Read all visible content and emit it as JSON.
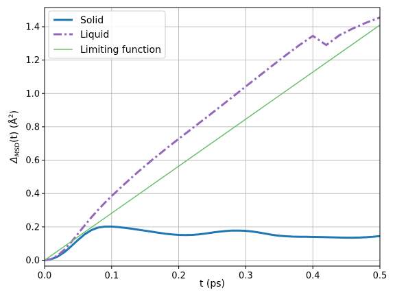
{
  "chart_data": {
    "type": "line",
    "title": "",
    "xlabel": "t (ps)",
    "ylabel": "Δ",
    "ylabel_sub": "MSD",
    "ylabel_tail": "(t) (Å",
    "ylabel_sup": "2",
    "ylabel_close": ")",
    "xlim": [
      0.0,
      0.5
    ],
    "ylim": [
      -0.035,
      1.515
    ],
    "grid": true,
    "legend_position": "top-left",
    "x_ticks": [
      {
        "value": 0.0,
        "label": "0.0"
      },
      {
        "value": 0.1,
        "label": "0.1"
      },
      {
        "value": 0.2,
        "label": "0.2"
      },
      {
        "value": 0.3,
        "label": "0.3"
      },
      {
        "value": 0.4,
        "label": "0.4"
      },
      {
        "value": 0.5,
        "label": "0.5"
      }
    ],
    "y_ticks": [
      {
        "value": 0.0,
        "label": "0.0"
      },
      {
        "value": 0.2,
        "label": "0.2"
      },
      {
        "value": 0.4,
        "label": "0.4"
      },
      {
        "value": 0.6,
        "label": "0.6"
      },
      {
        "value": 0.8,
        "label": "0.8"
      },
      {
        "value": 1.0,
        "label": "1.0"
      },
      {
        "value": 1.2,
        "label": "1.2"
      },
      {
        "value": 1.4,
        "label": "1.4"
      }
    ],
    "series": [
      {
        "name": "Solid",
        "color": "#1f77b4",
        "style": "solid",
        "x": [
          0.0,
          0.01,
          0.02,
          0.03,
          0.04,
          0.05,
          0.06,
          0.07,
          0.08,
          0.09,
          0.1,
          0.11,
          0.12,
          0.13,
          0.14,
          0.15,
          0.16,
          0.17,
          0.18,
          0.19,
          0.2,
          0.21,
          0.22,
          0.23,
          0.24,
          0.25,
          0.26,
          0.27,
          0.28,
          0.29,
          0.3,
          0.31,
          0.32,
          0.33,
          0.34,
          0.35,
          0.36,
          0.37,
          0.38,
          0.39,
          0.4,
          0.41,
          0.42,
          0.43,
          0.44,
          0.45,
          0.46,
          0.47,
          0.48,
          0.49,
          0.5
        ],
        "y": [
          0.0,
          0.006,
          0.023,
          0.05,
          0.085,
          0.122,
          0.156,
          0.181,
          0.196,
          0.202,
          0.202,
          0.199,
          0.194,
          0.189,
          0.183,
          0.177,
          0.171,
          0.165,
          0.159,
          0.155,
          0.152,
          0.151,
          0.152,
          0.155,
          0.16,
          0.166,
          0.171,
          0.175,
          0.178,
          0.178,
          0.176,
          0.172,
          0.166,
          0.159,
          0.152,
          0.147,
          0.144,
          0.142,
          0.141,
          0.141,
          0.14,
          0.139,
          0.138,
          0.137,
          0.136,
          0.135,
          0.135,
          0.136,
          0.138,
          0.141,
          0.145
        ]
      },
      {
        "name": "Liquid",
        "color": "#9467bd",
        "style": "dashdot",
        "x": [
          0.0,
          0.01,
          0.02,
          0.03,
          0.04,
          0.05,
          0.06,
          0.07,
          0.08,
          0.09,
          0.1,
          0.12,
          0.14,
          0.16,
          0.18,
          0.2,
          0.22,
          0.24,
          0.26,
          0.28,
          0.3,
          0.32,
          0.34,
          0.36,
          0.38,
          0.4,
          0.42,
          0.44,
          0.46,
          0.48,
          0.5
        ],
        "y": [
          0.0,
          0.008,
          0.03,
          0.065,
          0.11,
          0.16,
          0.21,
          0.258,
          0.303,
          0.345,
          0.385,
          0.46,
          0.532,
          0.6,
          0.665,
          0.728,
          0.79,
          0.852,
          0.915,
          0.978,
          1.042,
          1.105,
          1.168,
          1.23,
          1.29,
          1.345,
          1.29,
          1.35,
          1.39,
          1.425,
          1.455
        ]
      },
      {
        "name": "Limiting function",
        "color": "#6dbf6d",
        "style": "solid-thin",
        "x": [
          0.0,
          0.5
        ],
        "y": [
          0.0,
          1.41
        ]
      }
    ]
  }
}
